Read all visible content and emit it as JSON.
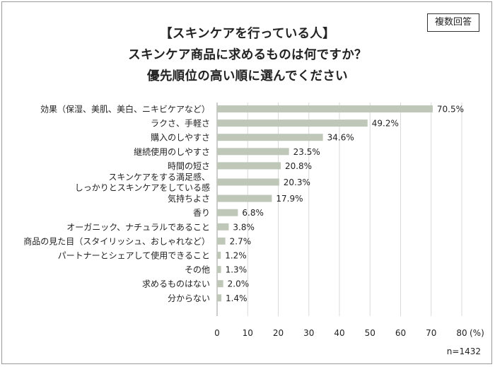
{
  "header": {
    "title_lines": [
      "【スキンケアを行っている人】",
      "スキンケア商品に求めるものは何ですか？",
      "優先順位の高い順に選んでください"
    ],
    "badge": "複数回答"
  },
  "footnote": "n=1432",
  "colors": {
    "bar": "#bfc8b8",
    "grid": "#d9d9d9",
    "axis": "#999999"
  },
  "chart_data": {
    "type": "bar",
    "orientation": "horizontal",
    "categories": [
      "効果（保湿、美肌、美白、ニキビケアなど）",
      "ラクさ、手軽さ",
      "購入のしやすさ",
      "継続使用のしやすさ",
      "時間の短さ",
      "スキンケアをする満足感、\nしっかりとスキンケアをしている感",
      "気持ちよさ",
      "香り",
      "オーガニック、ナチュラルであること",
      "商品の見た目（スタイリッシュ、おしゃれなど）",
      "パートナーとシェアして使用できること",
      "その他",
      "求めるものはない",
      "分からない"
    ],
    "values": [
      70.5,
      49.2,
      34.6,
      23.5,
      20.8,
      20.3,
      17.9,
      6.8,
      3.8,
      2.7,
      1.2,
      1.3,
      2.0,
      1.4
    ],
    "value_labels": [
      "70.5%",
      "49.2%",
      "34.6%",
      "23.5%",
      "20.8%",
      "20.3%",
      "17.9%",
      "6.8%",
      "3.8%",
      "2.7%",
      "1.2%",
      "1.3%",
      "2.0%",
      "1.4%"
    ],
    "xlim": [
      0,
      80
    ],
    "xticks": [
      0,
      10,
      20,
      30,
      40,
      50,
      60,
      70,
      80
    ],
    "xtick_labels": [
      "0",
      "10",
      "20",
      "30",
      "40",
      "50",
      "60",
      "70",
      "80"
    ],
    "xunit": "(%)",
    "grid": true,
    "legend": "none"
  }
}
